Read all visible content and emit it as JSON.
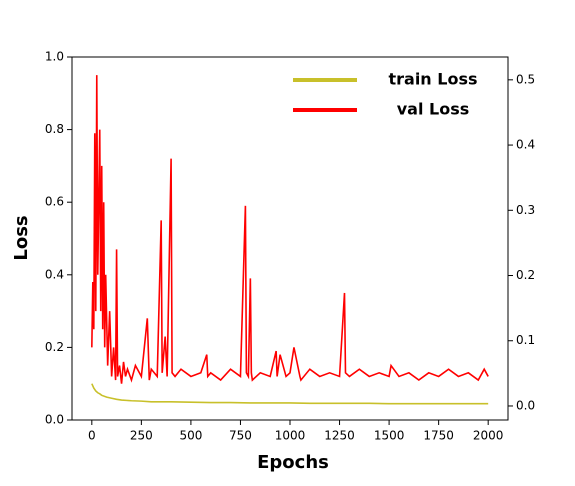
{
  "chart_data": {
    "type": "line",
    "xlabel": "Epochs",
    "ylabel": "Loss",
    "xlim": [
      -100,
      2100
    ],
    "ylim": [
      0,
      1
    ],
    "y2lim": [
      -0.0215,
      0.535
    ],
    "xticks": [
      0,
      250,
      500,
      750,
      1000,
      1250,
      1500,
      1750,
      2000
    ],
    "yticks": [
      {
        "value": 0,
        "label": "0.0"
      },
      0.2,
      0.4,
      0.6,
      0.8,
      {
        "value": 1,
        "label": "1.0"
      }
    ],
    "y2ticks": [
      {
        "value": 0,
        "label": "0.0"
      },
      0.1,
      0.2,
      0.3,
      0.4,
      0.5
    ],
    "legend": "upper right",
    "series": [
      {
        "name": "train Loss",
        "color": "#c8c02a",
        "x": [
          0,
          10,
          20,
          30,
          40,
          50,
          75,
          100,
          125,
          150,
          200,
          250,
          300,
          400,
          500,
          600,
          700,
          800,
          900,
          1000,
          1100,
          1200,
          1300,
          1400,
          1500,
          1600,
          1700,
          1800,
          1900,
          2000
        ],
        "values": [
          0.1,
          0.088,
          0.08,
          0.075,
          0.072,
          0.068,
          0.063,
          0.06,
          0.057,
          0.055,
          0.053,
          0.052,
          0.05,
          0.05,
          0.049,
          0.048,
          0.048,
          0.047,
          0.047,
          0.047,
          0.046,
          0.046,
          0.046,
          0.046,
          0.045,
          0.045,
          0.045,
          0.045,
          0.045,
          0.045
        ]
      },
      {
        "name": "val Loss",
        "color": "#ff0000",
        "x": [
          0,
          5,
          10,
          15,
          20,
          25,
          30,
          35,
          40,
          45,
          50,
          55,
          60,
          65,
          70,
          80,
          90,
          100,
          110,
          120,
          125,
          130,
          140,
          150,
          160,
          170,
          180,
          200,
          220,
          250,
          280,
          290,
          300,
          330,
          350,
          355,
          370,
          380,
          400,
          405,
          420,
          450,
          500,
          550,
          580,
          585,
          600,
          650,
          700,
          750,
          775,
          780,
          790,
          800,
          805,
          810,
          850,
          900,
          930,
          935,
          950,
          980,
          1000,
          1020,
          1050,
          1055,
          1100,
          1150,
          1200,
          1250,
          1275,
          1280,
          1300,
          1350,
          1400,
          1450,
          1500,
          1510,
          1550,
          1600,
          1650,
          1700,
          1750,
          1800,
          1850,
          1900,
          1950,
          1980,
          2000
        ],
        "values": [
          0.2,
          0.38,
          0.25,
          0.79,
          0.3,
          0.95,
          0.4,
          0.6,
          0.8,
          0.3,
          0.7,
          0.25,
          0.6,
          0.2,
          0.4,
          0.15,
          0.3,
          0.12,
          0.2,
          0.11,
          0.47,
          0.12,
          0.15,
          0.1,
          0.16,
          0.12,
          0.14,
          0.11,
          0.15,
          0.12,
          0.28,
          0.11,
          0.14,
          0.12,
          0.55,
          0.13,
          0.23,
          0.12,
          0.72,
          0.13,
          0.12,
          0.14,
          0.12,
          0.13,
          0.18,
          0.12,
          0.13,
          0.11,
          0.14,
          0.12,
          0.59,
          0.13,
          0.12,
          0.39,
          0.13,
          0.11,
          0.13,
          0.12,
          0.19,
          0.12,
          0.18,
          0.12,
          0.13,
          0.2,
          0.12,
          0.11,
          0.14,
          0.12,
          0.13,
          0.12,
          0.35,
          0.13,
          0.12,
          0.14,
          0.12,
          0.13,
          0.12,
          0.15,
          0.12,
          0.13,
          0.11,
          0.13,
          0.12,
          0.14,
          0.12,
          0.13,
          0.11,
          0.14,
          0.12
        ]
      }
    ]
  }
}
